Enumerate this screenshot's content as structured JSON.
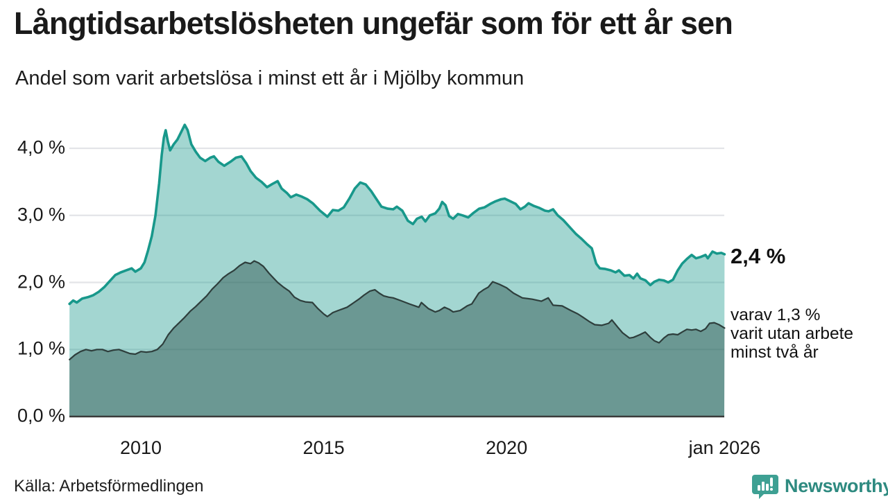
{
  "header": {
    "title": "Långtidsarbetslösheten ungefär som för ett år sen",
    "subtitle": "Andel som varit arbetslösa i minst ett år i Mjölby kommun"
  },
  "annotations": {
    "total_value_label": "2,4 %",
    "subset_label": "varav 1,3 %\nvarit utan arbete\nminst två år"
  },
  "footer": {
    "source": "Källa: Arbetsförmedlingen",
    "brand_name": "Newsworthy"
  },
  "colors": {
    "title_text": "#1a1a1a",
    "gridline": "#e3e4e8",
    "axis_line": "#3a3a3a",
    "teal_line": "#18988b",
    "teal_fill": "rgba(24,152,139,0.40)",
    "dark_line": "#2e3e3c",
    "dark_fill": "rgba(39,77,72,0.45)",
    "brand_text": "#2e8a80",
    "brand_icon": "#3ea093"
  },
  "chart_data": {
    "type": "area",
    "title": "Långtidsarbetslösheten ungefär som för ett år sen",
    "subtitle": "Andel som varit arbetslösa i minst ett år i Mjölby kommun",
    "x_range": [
      2008.05,
      2025.96
    ],
    "ylim": [
      0,
      4.5
    ],
    "grid": "horizontal",
    "y_axis": {
      "unit": "%",
      "ticks": [
        {
          "v": 0,
          "label": "0,0 %"
        },
        {
          "v": 1,
          "label": "1,0 %"
        },
        {
          "v": 2,
          "label": "2,0 %"
        },
        {
          "v": 3,
          "label": "3,0 %"
        },
        {
          "v": 4,
          "label": "4,0 %"
        }
      ]
    },
    "x_axis": {
      "ticks": [
        {
          "v": 2010,
          "label": "2010"
        },
        {
          "v": 2015,
          "label": "2015"
        },
        {
          "v": 2020,
          "label": "2020"
        },
        {
          "v": 2025.96,
          "label": "jan 2026"
        }
      ]
    },
    "series": [
      {
        "name": "Arbetslösa minst ett år",
        "end_value": "2,4 %",
        "points": [
          [
            2008.05,
            1.68
          ],
          [
            2008.15,
            1.73
          ],
          [
            2008.25,
            1.7
          ],
          [
            2008.4,
            1.76
          ],
          [
            2008.55,
            1.78
          ],
          [
            2008.7,
            1.81
          ],
          [
            2008.85,
            1.86
          ],
          [
            2009.0,
            1.93
          ],
          [
            2009.15,
            2.02
          ],
          [
            2009.3,
            2.11
          ],
          [
            2009.45,
            2.15
          ],
          [
            2009.6,
            2.18
          ],
          [
            2009.75,
            2.21
          ],
          [
            2009.85,
            2.16
          ],
          [
            2010.0,
            2.21
          ],
          [
            2010.1,
            2.3
          ],
          [
            2010.2,
            2.48
          ],
          [
            2010.3,
            2.69
          ],
          [
            2010.4,
            3.0
          ],
          [
            2010.5,
            3.48
          ],
          [
            2010.57,
            3.9
          ],
          [
            2010.63,
            4.16
          ],
          [
            2010.68,
            4.27
          ],
          [
            2010.74,
            4.1
          ],
          [
            2010.8,
            3.97
          ],
          [
            2010.9,
            4.06
          ],
          [
            2011.0,
            4.13
          ],
          [
            2011.1,
            4.24
          ],
          [
            2011.2,
            4.35
          ],
          [
            2011.28,
            4.27
          ],
          [
            2011.38,
            4.06
          ],
          [
            2011.5,
            3.95
          ],
          [
            2011.62,
            3.86
          ],
          [
            2011.76,
            3.81
          ],
          [
            2011.9,
            3.86
          ],
          [
            2012.0,
            3.88
          ],
          [
            2012.12,
            3.8
          ],
          [
            2012.28,
            3.74
          ],
          [
            2012.45,
            3.8
          ],
          [
            2012.6,
            3.86
          ],
          [
            2012.75,
            3.88
          ],
          [
            2012.88,
            3.78
          ],
          [
            2013.0,
            3.66
          ],
          [
            2013.15,
            3.56
          ],
          [
            2013.3,
            3.5
          ],
          [
            2013.45,
            3.42
          ],
          [
            2013.6,
            3.47
          ],
          [
            2013.74,
            3.51
          ],
          [
            2013.85,
            3.4
          ],
          [
            2014.0,
            3.33
          ],
          [
            2014.1,
            3.27
          ],
          [
            2014.25,
            3.31
          ],
          [
            2014.4,
            3.28
          ],
          [
            2014.55,
            3.24
          ],
          [
            2014.7,
            3.18
          ],
          [
            2014.9,
            3.07
          ],
          [
            2015.1,
            2.98
          ],
          [
            2015.25,
            3.08
          ],
          [
            2015.4,
            3.07
          ],
          [
            2015.55,
            3.12
          ],
          [
            2015.7,
            3.25
          ],
          [
            2015.85,
            3.4
          ],
          [
            2016.0,
            3.49
          ],
          [
            2016.15,
            3.46
          ],
          [
            2016.3,
            3.36
          ],
          [
            2016.42,
            3.26
          ],
          [
            2016.58,
            3.13
          ],
          [
            2016.75,
            3.1
          ],
          [
            2016.9,
            3.09
          ],
          [
            2017.0,
            3.13
          ],
          [
            2017.15,
            3.07
          ],
          [
            2017.3,
            2.92
          ],
          [
            2017.44,
            2.87
          ],
          [
            2017.55,
            2.95
          ],
          [
            2017.68,
            2.98
          ],
          [
            2017.78,
            2.91
          ],
          [
            2017.9,
            3.0
          ],
          [
            2018.05,
            3.03
          ],
          [
            2018.16,
            3.1
          ],
          [
            2018.24,
            3.2
          ],
          [
            2018.33,
            3.15
          ],
          [
            2018.43,
            2.99
          ],
          [
            2018.54,
            2.95
          ],
          [
            2018.67,
            3.02
          ],
          [
            2018.8,
            3.0
          ],
          [
            2018.95,
            2.97
          ],
          [
            2019.1,
            3.04
          ],
          [
            2019.25,
            3.1
          ],
          [
            2019.4,
            3.12
          ],
          [
            2019.55,
            3.17
          ],
          [
            2019.7,
            3.21
          ],
          [
            2019.85,
            3.24
          ],
          [
            2019.95,
            3.25
          ],
          [
            2020.1,
            3.21
          ],
          [
            2020.25,
            3.17
          ],
          [
            2020.38,
            3.09
          ],
          [
            2020.5,
            3.13
          ],
          [
            2020.6,
            3.18
          ],
          [
            2020.75,
            3.14
          ],
          [
            2020.9,
            3.11
          ],
          [
            2021.05,
            3.07
          ],
          [
            2021.15,
            3.06
          ],
          [
            2021.27,
            3.09
          ],
          [
            2021.4,
            3.0
          ],
          [
            2021.55,
            2.93
          ],
          [
            2021.7,
            2.84
          ],
          [
            2021.9,
            2.72
          ],
          [
            2022.05,
            2.65
          ],
          [
            2022.2,
            2.57
          ],
          [
            2022.33,
            2.51
          ],
          [
            2022.45,
            2.28
          ],
          [
            2022.55,
            2.21
          ],
          [
            2022.7,
            2.2
          ],
          [
            2022.85,
            2.18
          ],
          [
            2022.98,
            2.15
          ],
          [
            2023.07,
            2.18
          ],
          [
            2023.22,
            2.1
          ],
          [
            2023.36,
            2.11
          ],
          [
            2023.47,
            2.06
          ],
          [
            2023.57,
            2.13
          ],
          [
            2023.66,
            2.06
          ],
          [
            2023.8,
            2.03
          ],
          [
            2023.93,
            1.96
          ],
          [
            2024.04,
            2.01
          ],
          [
            2024.17,
            2.04
          ],
          [
            2024.3,
            2.03
          ],
          [
            2024.42,
            2.0
          ],
          [
            2024.55,
            2.04
          ],
          [
            2024.68,
            2.18
          ],
          [
            2024.8,
            2.28
          ],
          [
            2024.93,
            2.35
          ],
          [
            2025.06,
            2.41
          ],
          [
            2025.18,
            2.36
          ],
          [
            2025.31,
            2.38
          ],
          [
            2025.44,
            2.41
          ],
          [
            2025.5,
            2.36
          ],
          [
            2025.63,
            2.46
          ],
          [
            2025.75,
            2.43
          ],
          [
            2025.87,
            2.44
          ],
          [
            2025.96,
            2.42
          ]
        ]
      },
      {
        "name": "varav utan arbete minst två år",
        "end_value": "1,3 %",
        "points": [
          [
            2008.05,
            0.85
          ],
          [
            2008.2,
            0.92
          ],
          [
            2008.35,
            0.97
          ],
          [
            2008.5,
            1.0
          ],
          [
            2008.65,
            0.98
          ],
          [
            2008.8,
            1.0
          ],
          [
            2008.95,
            1.0
          ],
          [
            2009.1,
            0.97
          ],
          [
            2009.25,
            0.99
          ],
          [
            2009.4,
            1.0
          ],
          [
            2009.55,
            0.97
          ],
          [
            2009.7,
            0.94
          ],
          [
            2009.85,
            0.93
          ],
          [
            2010.0,
            0.97
          ],
          [
            2010.15,
            0.96
          ],
          [
            2010.3,
            0.97
          ],
          [
            2010.45,
            1.0
          ],
          [
            2010.6,
            1.08
          ],
          [
            2010.75,
            1.22
          ],
          [
            2010.9,
            1.32
          ],
          [
            2011.05,
            1.4
          ],
          [
            2011.2,
            1.48
          ],
          [
            2011.35,
            1.57
          ],
          [
            2011.5,
            1.64
          ],
          [
            2011.65,
            1.72
          ],
          [
            2011.8,
            1.8
          ],
          [
            2011.95,
            1.9
          ],
          [
            2012.1,
            1.98
          ],
          [
            2012.25,
            2.07
          ],
          [
            2012.4,
            2.13
          ],
          [
            2012.55,
            2.18
          ],
          [
            2012.7,
            2.25
          ],
          [
            2012.85,
            2.3
          ],
          [
            2013.0,
            2.28
          ],
          [
            2013.1,
            2.32
          ],
          [
            2013.22,
            2.29
          ],
          [
            2013.35,
            2.24
          ],
          [
            2013.5,
            2.14
          ],
          [
            2013.62,
            2.07
          ],
          [
            2013.74,
            2.0
          ],
          [
            2013.9,
            1.93
          ],
          [
            2014.06,
            1.87
          ],
          [
            2014.2,
            1.78
          ],
          [
            2014.36,
            1.73
          ],
          [
            2014.5,
            1.71
          ],
          [
            2014.69,
            1.7
          ],
          [
            2014.84,
            1.61
          ],
          [
            2015.0,
            1.53
          ],
          [
            2015.1,
            1.49
          ],
          [
            2015.25,
            1.55
          ],
          [
            2015.39,
            1.58
          ],
          [
            2015.64,
            1.63
          ],
          [
            2015.8,
            1.69
          ],
          [
            2015.96,
            1.75
          ],
          [
            2016.1,
            1.81
          ],
          [
            2016.26,
            1.87
          ],
          [
            2016.4,
            1.89
          ],
          [
            2016.52,
            1.84
          ],
          [
            2016.64,
            1.8
          ],
          [
            2016.78,
            1.78
          ],
          [
            2016.9,
            1.77
          ],
          [
            2017.1,
            1.73
          ],
          [
            2017.34,
            1.68
          ],
          [
            2017.5,
            1.65
          ],
          [
            2017.6,
            1.63
          ],
          [
            2017.67,
            1.7
          ],
          [
            2017.86,
            1.61
          ],
          [
            2018.05,
            1.56
          ],
          [
            2018.16,
            1.58
          ],
          [
            2018.3,
            1.63
          ],
          [
            2018.43,
            1.6
          ],
          [
            2018.54,
            1.56
          ],
          [
            2018.73,
            1.58
          ],
          [
            2018.92,
            1.65
          ],
          [
            2019.05,
            1.68
          ],
          [
            2019.24,
            1.84
          ],
          [
            2019.37,
            1.89
          ],
          [
            2019.5,
            1.93
          ],
          [
            2019.62,
            2.01
          ],
          [
            2019.81,
            1.97
          ],
          [
            2020.0,
            1.92
          ],
          [
            2020.19,
            1.84
          ],
          [
            2020.43,
            1.77
          ],
          [
            2020.7,
            1.75
          ],
          [
            2020.95,
            1.72
          ],
          [
            2021.14,
            1.77
          ],
          [
            2021.27,
            1.66
          ],
          [
            2021.52,
            1.65
          ],
          [
            2021.76,
            1.58
          ],
          [
            2021.95,
            1.53
          ],
          [
            2022.09,
            1.48
          ],
          [
            2022.28,
            1.41
          ],
          [
            2022.41,
            1.37
          ],
          [
            2022.6,
            1.36
          ],
          [
            2022.79,
            1.39
          ],
          [
            2022.88,
            1.44
          ],
          [
            2023.03,
            1.34
          ],
          [
            2023.17,
            1.25
          ],
          [
            2023.36,
            1.17
          ],
          [
            2023.47,
            1.18
          ],
          [
            2023.64,
            1.22
          ],
          [
            2023.79,
            1.26
          ],
          [
            2023.93,
            1.18
          ],
          [
            2024.04,
            1.13
          ],
          [
            2024.17,
            1.1
          ],
          [
            2024.3,
            1.17
          ],
          [
            2024.42,
            1.22
          ],
          [
            2024.55,
            1.23
          ],
          [
            2024.68,
            1.22
          ],
          [
            2024.8,
            1.26
          ],
          [
            2024.93,
            1.3
          ],
          [
            2025.06,
            1.29
          ],
          [
            2025.18,
            1.3
          ],
          [
            2025.31,
            1.27
          ],
          [
            2025.44,
            1.31
          ],
          [
            2025.55,
            1.39
          ],
          [
            2025.68,
            1.4
          ],
          [
            2025.81,
            1.37
          ],
          [
            2025.96,
            1.32
          ]
        ]
      }
    ]
  }
}
